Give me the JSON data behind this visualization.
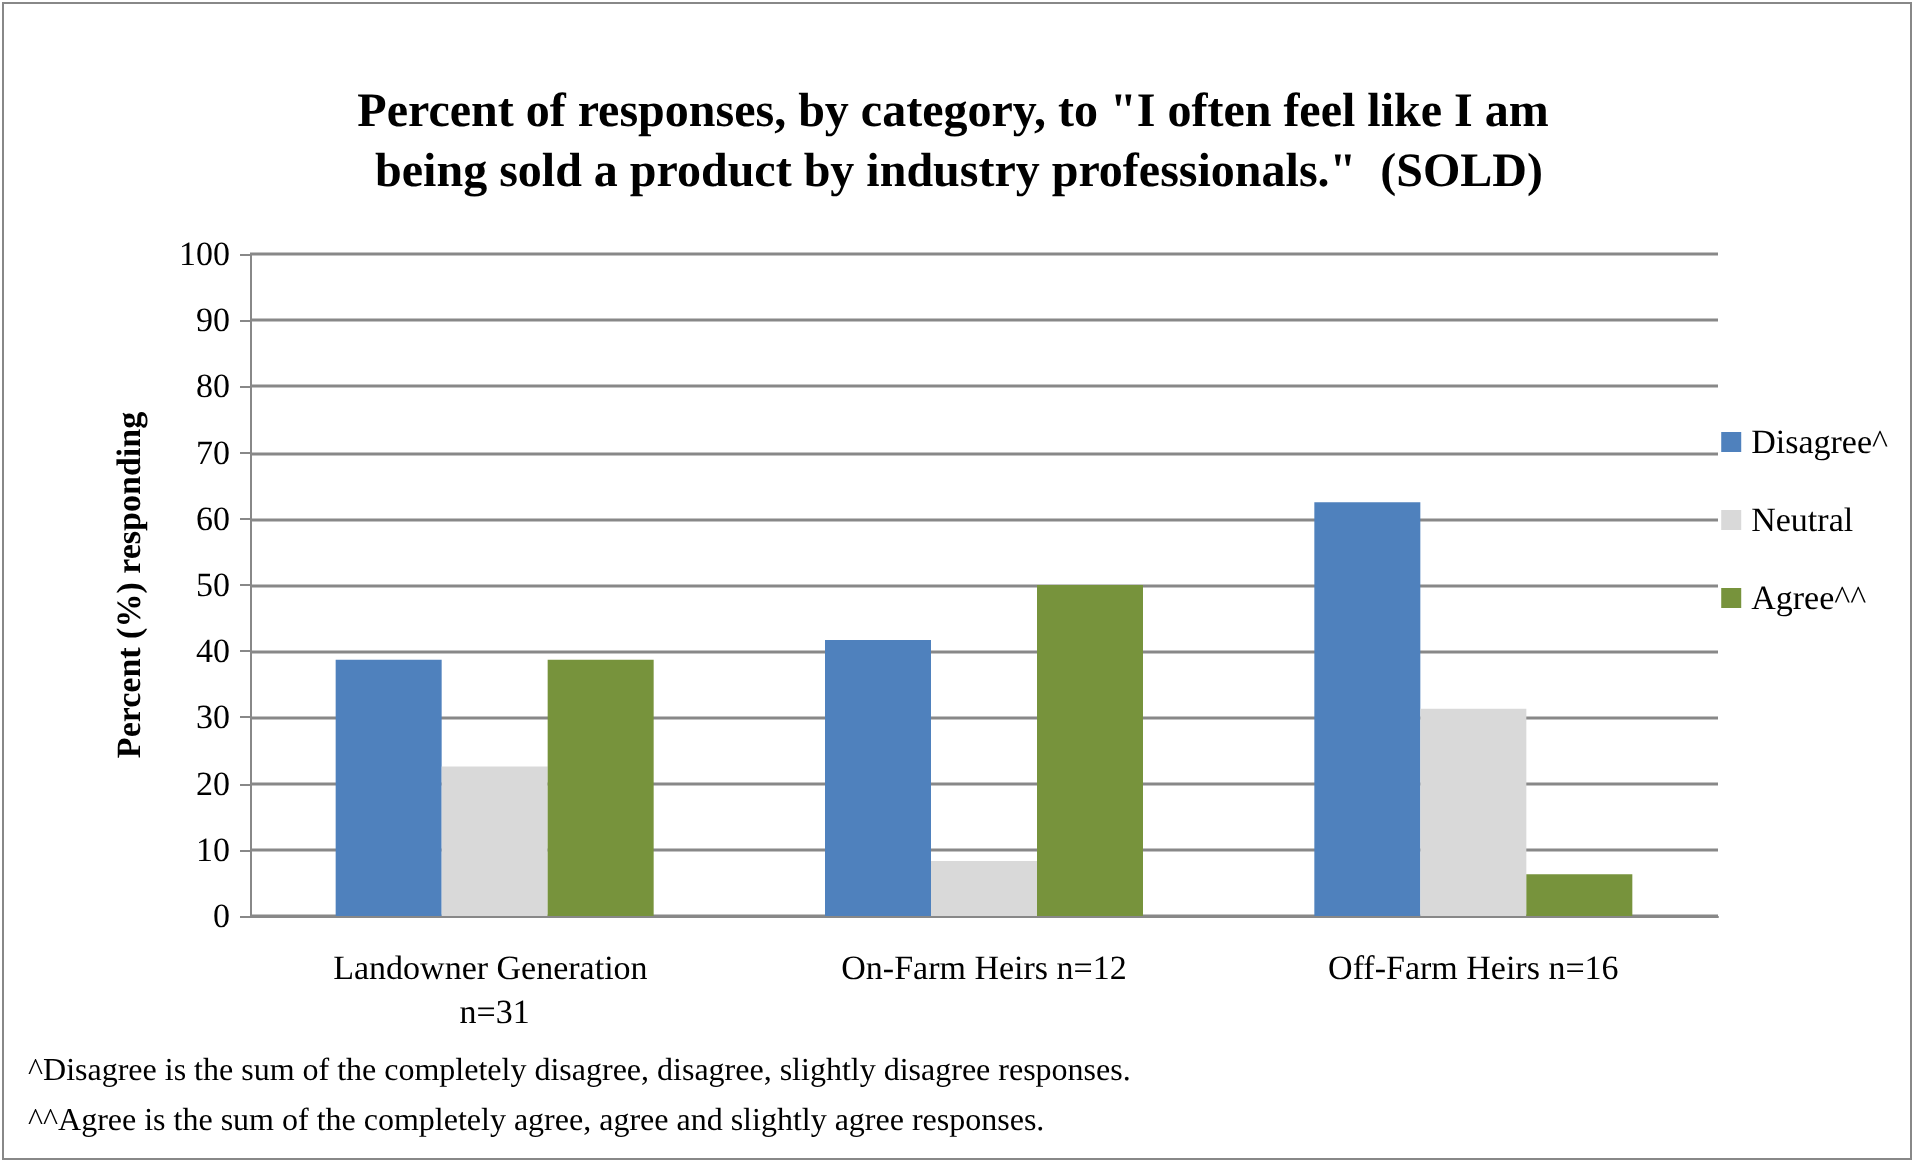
{
  "chart_data": {
    "type": "bar",
    "title": "Percent of responses, by category, to \"I often feel like I am being sold a product by industry professionals.\"  (SOLD)",
    "ylabel": "Percent (%) responding",
    "categories": [
      "Landowner Generation n=31",
      "On-Farm Heirs n=12",
      "Off-Farm Heirs n=16"
    ],
    "series": [
      {
        "name": "Disagree^",
        "color": "#4f81bd",
        "values": [
          38.7,
          41.7,
          62.5
        ]
      },
      {
        "name": "Neutral",
        "color": "#d9d9d9",
        "values": [
          22.6,
          8.3,
          31.3
        ]
      },
      {
        "name": "Agree^^",
        "color": "#77933c",
        "values": [
          38.7,
          50,
          6.3
        ]
      }
    ],
    "ylim": [
      0,
      100
    ],
    "yticks": [
      0,
      10,
      20,
      30,
      40,
      50,
      60,
      70,
      80,
      90,
      100
    ],
    "grid": "y",
    "legend": "right",
    "annotations": [
      "^Disagree is the sum of the completely disagree, disagree, slightly disagree responses.",
      "^^Agree is the sum of the completely agree, agree and slightly agree responses."
    ]
  }
}
